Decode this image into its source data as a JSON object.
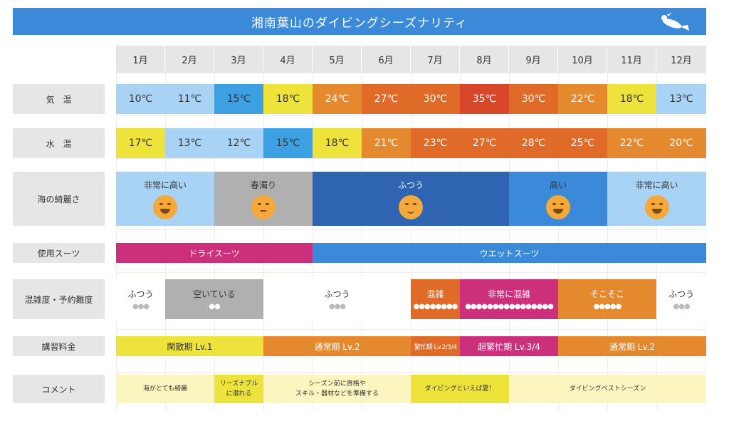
{
  "title": "湘南葉山のダイビングシーズナリティ",
  "months": [
    "1月",
    "2月",
    "3月",
    "4月",
    "5月",
    "6月",
    "7月",
    "8月",
    "9月",
    "10月",
    "11月",
    "12月"
  ],
  "row_labels": {
    "air": "気　温",
    "water": "水　温",
    "clarity": "海の綺麗さ",
    "suit": "使用スーツ",
    "crowd": "混雑度・予約難度",
    "fee": "講習料金",
    "comment": "コメント"
  },
  "air_temp": [
    "10℃",
    "11℃",
    "15℃",
    "18℃",
    "24℃",
    "27℃",
    "30℃",
    "35℃",
    "30℃",
    "22℃",
    "18℃",
    "13℃"
  ],
  "water_temp": [
    "17℃",
    "13℃",
    "12℃",
    "15℃",
    "18℃",
    "21℃",
    "23℃",
    "27℃",
    "28℃",
    "25℃",
    "22℃",
    "20℃"
  ],
  "clarity": [
    "非常に高い",
    "春濁り",
    "ふつう",
    "高い",
    "非常に高い"
  ],
  "suits": [
    "ドライスーツ",
    "ウエットスーツ"
  ],
  "crowd": [
    "ふつう",
    "空いている",
    "ふつう",
    "混雑",
    "非常に混雑",
    "そこそこ",
    "ふつう"
  ],
  "fees": [
    "閑散期 Lv.1",
    "通常期 Lv.2",
    "繁忙期 Lv.2/3/4",
    "超繁忙期 Lv.3/4",
    "通常期 Lv.2"
  ],
  "comments": {
    "c1": "海がとても綺麗",
    "c2a": "リーズナブル",
    "c2b": "に潜れる",
    "c3a": "シーズン前に資格や",
    "c3b": "スキル・器材などを準備する",
    "c4": "ダイビングといえば夏！",
    "c5": "ダイビングベストシーズン"
  },
  "colors": {
    "title_bg": "#3b8ad9",
    "light_blue": "#a9d3f5",
    "mid_blue": "#3ca0e3",
    "yellow": "#ede33a",
    "orange": "#e4892e",
    "dark_orange": "#e06a28",
    "red_orange": "#d8472a",
    "gray": "#b0b0b0",
    "navy": "#2f64b3",
    "magenta": "#cc2f7c",
    "suit_blue": "#3b8ad9",
    "pale_yellow": "#fbf6bf"
  },
  "icons": [
    "diver-icon",
    "laughing-face-icon",
    "neutral-face-icon",
    "smile-face-icon",
    "grin-face-icon",
    "people-icon"
  ]
}
